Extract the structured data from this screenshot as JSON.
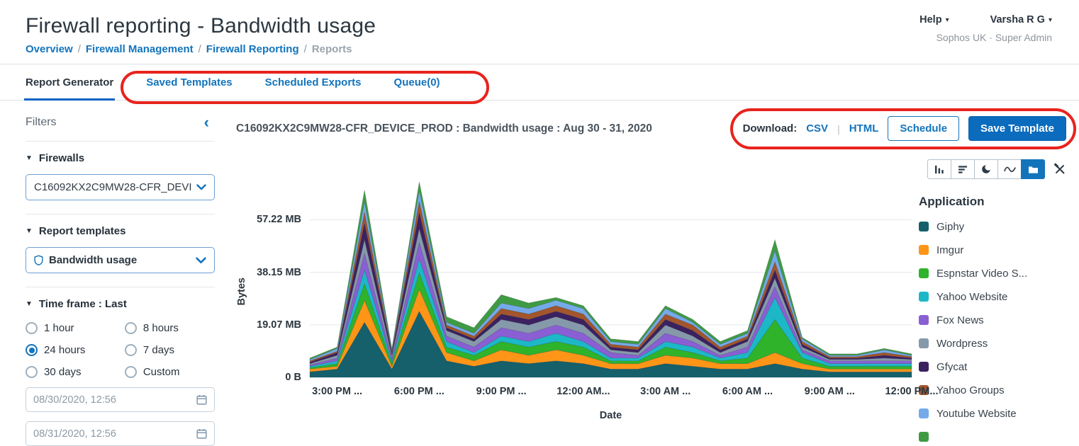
{
  "header": {
    "title": "Firewall reporting - Bandwidth usage",
    "breadcrumb": [
      {
        "label": "Overview",
        "muted": false
      },
      {
        "label": "Firewall Management",
        "muted": false
      },
      {
        "label": "Firewall Reporting",
        "muted": false
      },
      {
        "label": "Reports",
        "muted": true
      }
    ],
    "breadcrumb_separator": "/",
    "help": "Help",
    "user": "Varsha R G",
    "account": "Sophos UK · Super Admin"
  },
  "tabs": [
    {
      "label": "Report Generator",
      "active": true
    },
    {
      "label": "Saved Templates",
      "active": false
    },
    {
      "label": "Scheduled Exports",
      "active": false
    },
    {
      "label": "Queue(0)",
      "active": false
    }
  ],
  "filters": {
    "title": "Filters",
    "firewalls": {
      "label": "Firewalls",
      "value": "C16092KX2C9MW28-CFR_DEVI"
    },
    "templates": {
      "label": "Report templates",
      "value": "Bandwidth usage"
    },
    "timeframe": {
      "label": "Time frame : Last"
    },
    "radios": [
      {
        "label": "1 hour",
        "selected": false
      },
      {
        "label": "8 hours",
        "selected": false
      },
      {
        "label": "24 hours",
        "selected": true
      },
      {
        "label": "7 days",
        "selected": false
      },
      {
        "label": "30 days",
        "selected": false
      },
      {
        "label": "Custom",
        "selected": false
      }
    ],
    "date_from": "08/30/2020, 12:56",
    "date_to": "08/31/2020, 12:56"
  },
  "report": {
    "heading": "C16092KX2C9MW28-CFR_DEVICE_PROD : Bandwidth usage : Aug 30 - 31, 2020",
    "download_label": "Download:",
    "csv": "CSV",
    "divider": "|",
    "html": "HTML",
    "schedule": "Schedule",
    "save_template": "Save Template"
  },
  "chart_toolbar": {
    "buttons": [
      {
        "icon": "column-chart-icon",
        "active": false
      },
      {
        "icon": "horizontal-bar-chart-icon",
        "active": false
      },
      {
        "icon": "pie-chart-icon",
        "active": false
      },
      {
        "icon": "line-chart-icon",
        "active": false
      },
      {
        "icon": "stacked-area-chart-icon",
        "active": true
      }
    ],
    "tools_icon": "customize-tools-icon"
  },
  "chart_data": {
    "type": "area",
    "stacked": true,
    "unit": "MB",
    "xlabel": "Date",
    "ylabel": "Bytes",
    "legend_title": "Application",
    "legend_position": "right",
    "grid": true,
    "ylim": [
      0,
      72
    ],
    "y_ticks": [
      "0 B",
      "19.07 MB",
      "38.15 MB",
      "57.22 MB"
    ],
    "y_tick_values": [
      0,
      19.07,
      38.15,
      57.22
    ],
    "x_tick_labels": [
      "3:00 PM ...",
      "6:00 PM ...",
      "9:00 PM ...",
      "12:00 AM...",
      "3:00 AM ...",
      "6:00 AM ...",
      "9:00 AM ...",
      "12:00 PM..."
    ],
    "x_tick_positions": [
      1,
      4,
      7,
      10,
      13,
      16,
      19,
      22
    ],
    "series": [
      {
        "name": "Giphy",
        "color": "#15606a",
        "values": [
          2,
          3,
          20,
          3,
          24,
          6,
          4,
          6,
          5,
          6,
          5,
          3,
          3,
          5,
          4,
          3,
          3,
          5,
          3,
          2,
          2,
          2,
          2
        ]
      },
      {
        "name": "Imgur",
        "color": "#ff9517",
        "values": [
          1,
          1,
          8,
          1,
          8,
          3,
          2,
          4,
          3,
          4,
          3,
          2,
          2,
          3,
          3,
          2,
          2,
          4,
          2,
          1,
          1,
          1,
          1
        ]
      },
      {
        "name": "Espnstar Video S...",
        "color": "#2fb32a",
        "values": [
          0.5,
          1,
          6,
          1,
          6,
          2,
          2,
          3,
          3,
          3,
          3,
          1,
          1,
          3,
          2,
          1,
          2,
          12,
          2,
          1,
          1,
          1,
          1
        ]
      },
      {
        "name": "Yahoo Website",
        "color": "#1cb8c8",
        "values": [
          0.5,
          1,
          5,
          1,
          5,
          2,
          1,
          2,
          2,
          3,
          2,
          1,
          1,
          2,
          2,
          1,
          2,
          8,
          2,
          1,
          1,
          1,
          1
        ]
      },
      {
        "name": "Fox News",
        "color": "#8a5fd3",
        "values": [
          0.5,
          1,
          6,
          1,
          6,
          2,
          2,
          3,
          3,
          3,
          3,
          2,
          1,
          3,
          2,
          1,
          2,
          4,
          1,
          1,
          1,
          1,
          1
        ]
      },
      {
        "name": "Wordpress",
        "color": "#8699ab",
        "values": [
          0.5,
          1,
          5,
          1,
          5,
          2,
          2,
          3,
          3,
          3,
          3,
          1,
          1,
          3,
          2,
          1,
          2,
          3,
          1,
          0.5,
          0.5,
          1,
          0.5
        ]
      },
      {
        "name": "Gfycat",
        "color": "#3b2160",
        "values": [
          0.5,
          1,
          6,
          1,
          6,
          1,
          1,
          2,
          2,
          2,
          2,
          1,
          1,
          2,
          2,
          1,
          1,
          3,
          1,
          0.5,
          0.5,
          1,
          0.5
        ]
      },
      {
        "name": "Yahoo Groups",
        "color": "#a3552b",
        "values": [
          0.5,
          0.5,
          4,
          0.5,
          4,
          1,
          1,
          2,
          2,
          2,
          2,
          1,
          1,
          2,
          2,
          1,
          1,
          3,
          1,
          0.5,
          0.5,
          1,
          0.5
        ]
      },
      {
        "name": "Youtube Website",
        "color": "#74aae8",
        "values": [
          0.5,
          1,
          4,
          0.5,
          4,
          1,
          1,
          2,
          2,
          2,
          2,
          1,
          1,
          2,
          1,
          1,
          1,
          4,
          1,
          0.5,
          0.5,
          1,
          0.5
        ]
      },
      {
        "name": "",
        "color": "#3f9b43",
        "values": [
          0.5,
          0.5,
          4,
          0.5,
          3,
          2,
          2,
          3,
          2,
          1,
          1,
          1,
          1,
          1,
          1,
          1,
          1,
          4,
          0.5,
          0.5,
          0.5,
          0.5,
          0.5
        ]
      }
    ]
  },
  "colors": {
    "link_blue": "#1374bc",
    "primary_blue": "#0b6bbd",
    "active_tab_underline": "#0b63c4",
    "annotation_red": "#e8231d"
  },
  "icons": {
    "caret_down": "▾",
    "triangle_down": "▼",
    "collapse_left": "‹"
  }
}
